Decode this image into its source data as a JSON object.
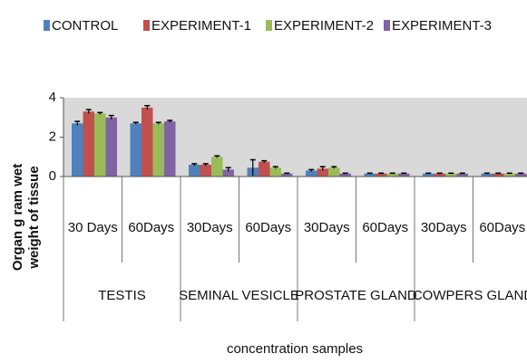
{
  "chart_data": {
    "type": "bar",
    "ylabel": [
      "Organ g ram wet",
      "weight of tissue"
    ],
    "xlabel": "concentration samples",
    "categories": [
      "30 Days",
      "60Days",
      "30Days",
      "60Days",
      "30Days",
      "60Days",
      "30Days",
      "60Days"
    ],
    "category_groups": [
      "TESTIS",
      "SEMINAL VESICLE",
      "PROSTATE GLAND",
      "COWPERS GLAND"
    ],
    "series": [
      {
        "name": "CONTROL",
        "color": "#4f81bd",
        "values": [
          2.7,
          2.7,
          0.6,
          0.45,
          0.3,
          0.15,
          0.15,
          0.15
        ],
        "errors": [
          0.1,
          0.05,
          0.05,
          0.4,
          0.05,
          0.02,
          0.02,
          0.02
        ]
      },
      {
        "name": "EXPERIMENT-1",
        "color": "#c0504d",
        "values": [
          3.3,
          3.5,
          0.6,
          0.75,
          0.4,
          0.15,
          0.15,
          0.15
        ],
        "errors": [
          0.1,
          0.1,
          0.05,
          0.05,
          0.1,
          0.02,
          0.02,
          0.02
        ]
      },
      {
        "name": "EXPERIMENT-2",
        "color": "#9bbb59",
        "values": [
          3.2,
          2.7,
          1.0,
          0.45,
          0.45,
          0.15,
          0.15,
          0.15
        ],
        "errors": [
          0.05,
          0.05,
          0.05,
          0.05,
          0.05,
          0.02,
          0.02,
          0.02
        ]
      },
      {
        "name": "EXPERIMENT-3",
        "color": "#8064a2",
        "values": [
          3.0,
          2.8,
          0.35,
          0.15,
          0.15,
          0.15,
          0.15,
          0.15
        ],
        "errors": [
          0.1,
          0.05,
          0.1,
          0.02,
          0.02,
          0.02,
          0.02,
          0.02
        ]
      }
    ],
    "ylim": [
      0,
      4
    ],
    "yticks": [
      0,
      2,
      4
    ]
  }
}
